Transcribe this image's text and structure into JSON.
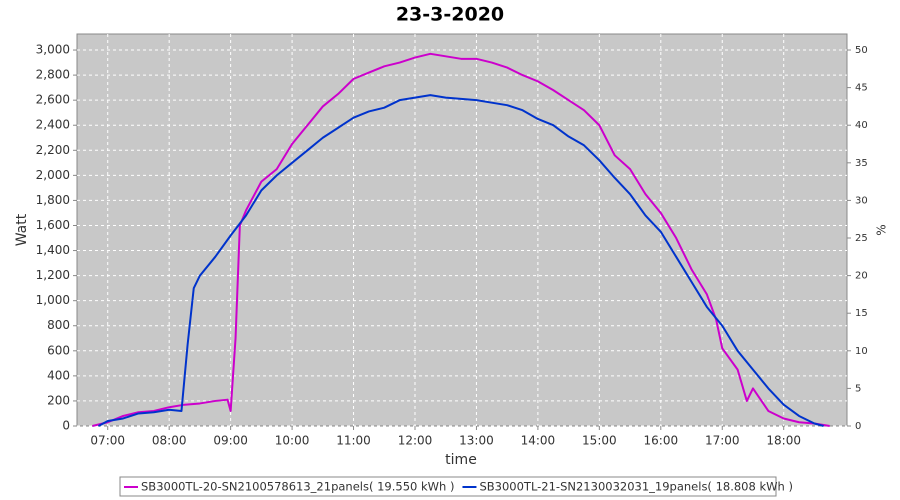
{
  "chart_data": {
    "type": "line",
    "title": "23-3-2020",
    "x_label": "time",
    "y_label": "Watt",
    "y2_label": "%",
    "xlim": [
      6.5,
      19.03
    ],
    "xticks": [
      {
        "value": 7,
        "label": "07:00"
      },
      {
        "value": 8,
        "label": "08:00"
      },
      {
        "value": 9,
        "label": "09:00"
      },
      {
        "value": 10,
        "label": "10:00"
      },
      {
        "value": 11,
        "label": "11:00"
      },
      {
        "value": 12,
        "label": "12:00"
      },
      {
        "value": 13,
        "label": "13:00"
      },
      {
        "value": 14,
        "label": "14:00"
      },
      {
        "value": 15,
        "label": "15:00"
      },
      {
        "value": 16,
        "label": "16:00"
      },
      {
        "value": 17,
        "label": "17:00"
      },
      {
        "value": 18,
        "label": "18:00"
      }
    ],
    "ylim": [
      0,
      3128
    ],
    "yticks": [
      0,
      200,
      400,
      600,
      800,
      {
        "value": 1000,
        "label": "1,000"
      },
      {
        "value": 1200,
        "label": "1,200"
      },
      {
        "value": 1400,
        "label": "1,400"
      },
      {
        "value": 1600,
        "label": "1,600"
      },
      {
        "value": 1800,
        "label": "1,800"
      },
      {
        "value": 2000,
        "label": "2,000"
      },
      {
        "value": 2200,
        "label": "2,200"
      },
      {
        "value": 2400,
        "label": "2,400"
      },
      {
        "value": 2600,
        "label": "2,600"
      },
      {
        "value": 2800,
        "label": "2,800"
      },
      {
        "value": 3000,
        "label": "3,000"
      }
    ],
    "y2lim": [
      0,
      52.13
    ],
    "y2ticks": [
      0,
      5,
      10,
      15,
      20,
      25,
      30,
      35,
      40,
      45,
      50
    ],
    "grid": true,
    "legend": "bottom",
    "series": [
      {
        "name": "SB3000TL-20-SN2100578613_21panels( 19.550 kWh )",
        "color": "#cc00cc",
        "x": [
          6.75,
          7.0,
          7.25,
          7.5,
          7.75,
          8.0,
          8.25,
          8.5,
          8.75,
          8.95,
          9.0,
          9.08,
          9.15,
          9.25,
          9.5,
          9.75,
          10.0,
          10.25,
          10.5,
          10.75,
          11.0,
          11.25,
          11.5,
          11.75,
          12.0,
          12.25,
          12.5,
          12.75,
          13.0,
          13.25,
          13.5,
          13.75,
          14.0,
          14.25,
          14.5,
          14.75,
          15.0,
          15.25,
          15.5,
          15.75,
          16.0,
          16.25,
          16.5,
          16.75,
          16.9,
          17.0,
          17.25,
          17.4,
          17.5,
          17.75,
          18.0,
          18.25,
          18.5,
          18.75
        ],
        "values": [
          0,
          30,
          80,
          110,
          120,
          150,
          170,
          180,
          200,
          210,
          120,
          700,
          1600,
          1720,
          1950,
          2050,
          2250,
          2400,
          2550,
          2650,
          2770,
          2820,
          2870,
          2900,
          2940,
          2970,
          2950,
          2930,
          2930,
          2900,
          2860,
          2800,
          2750,
          2680,
          2600,
          2520,
          2400,
          2160,
          2050,
          1850,
          1700,
          1500,
          1250,
          1050,
          850,
          620,
          450,
          200,
          300,
          120,
          60,
          30,
          20,
          0
        ]
      },
      {
        "name": "SB3000TL-21-SN2130032031_19panels( 18.808 kWh )",
        "color": "#0033cc",
        "x": [
          6.85,
          7.0,
          7.25,
          7.5,
          7.75,
          8.0,
          8.2,
          8.3,
          8.4,
          8.5,
          8.75,
          9.0,
          9.25,
          9.5,
          9.75,
          10.0,
          10.25,
          10.5,
          10.75,
          11.0,
          11.25,
          11.5,
          11.75,
          12.0,
          12.25,
          12.5,
          12.75,
          13.0,
          13.25,
          13.5,
          13.75,
          14.0,
          14.25,
          14.5,
          14.75,
          15.0,
          15.25,
          15.5,
          15.75,
          16.0,
          16.25,
          16.5,
          16.75,
          17.0,
          17.25,
          17.5,
          17.75,
          18.0,
          18.25,
          18.5,
          18.65
        ],
        "values": [
          0,
          40,
          60,
          100,
          110,
          130,
          120,
          650,
          1100,
          1200,
          1350,
          1520,
          1680,
          1880,
          2000,
          2100,
          2200,
          2300,
          2380,
          2460,
          2510,
          2540,
          2600,
          2620,
          2640,
          2620,
          2610,
          2600,
          2580,
          2560,
          2520,
          2450,
          2400,
          2310,
          2240,
          2120,
          1980,
          1850,
          1680,
          1550,
          1350,
          1150,
          950,
          800,
          600,
          450,
          300,
          170,
          80,
          20,
          0
        ]
      }
    ]
  }
}
